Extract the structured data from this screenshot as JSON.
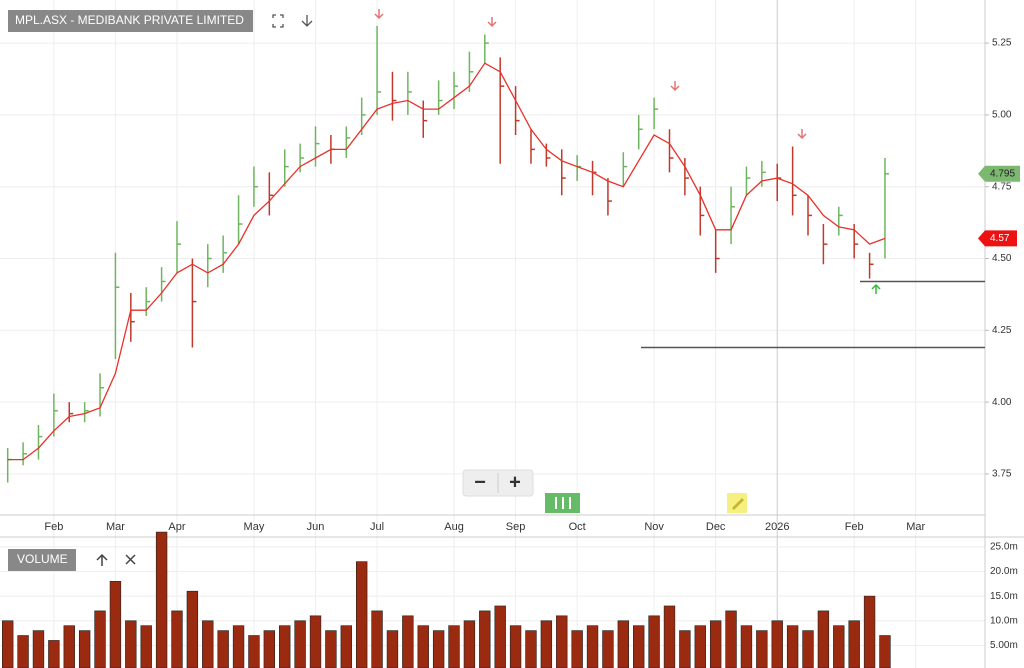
{
  "chart_data": {
    "type": "ohlc",
    "title": "MPL.ASX - MEDIBANK PRIVATE LIMITED",
    "categories": [
      null,
      null,
      null,
      "Feb",
      null,
      null,
      null,
      "Mar",
      null,
      null,
      null,
      "Apr",
      null,
      null,
      null,
      null,
      "May",
      null,
      null,
      null,
      "Jun",
      null,
      null,
      null,
      "Jul",
      null,
      null,
      null,
      null,
      "Aug",
      null,
      null,
      null,
      "Sep",
      null,
      null,
      null,
      "Oct",
      null,
      null,
      null,
      null,
      "Nov",
      null,
      null,
      null,
      "Dec",
      null,
      null,
      null,
      "2026",
      null,
      null,
      null,
      null,
      "Feb",
      null,
      null,
      null,
      "Mar",
      null,
      null,
      null,
      null
    ],
    "high": [
      3.84,
      3.86,
      3.92,
      4.03,
      4.0,
      4.0,
      4.1,
      4.52,
      4.38,
      4.4,
      4.47,
      4.63,
      4.5,
      4.55,
      4.58,
      4.72,
      4.82,
      4.8,
      4.88,
      4.9,
      4.96,
      4.93,
      4.96,
      5.06,
      5.31,
      5.15,
      5.15,
      5.05,
      5.12,
      5.15,
      5.22,
      5.28,
      5.2,
      5.1,
      4.95,
      4.9,
      4.88,
      4.86,
      4.84,
      4.78,
      4.87,
      5.0,
      5.06,
      4.95,
      4.85,
      4.75,
      4.6,
      4.75,
      4.82,
      4.84,
      4.83,
      4.89,
      4.72,
      4.62,
      4.68,
      4.62,
      4.52,
      4.85,
      null,
      null,
      null,
      null,
      null,
      null
    ],
    "low": [
      3.72,
      3.78,
      3.8,
      3.88,
      3.93,
      3.93,
      3.95,
      4.15,
      4.21,
      4.3,
      4.35,
      4.45,
      4.19,
      4.4,
      4.45,
      4.55,
      4.68,
      4.65,
      4.75,
      4.8,
      4.82,
      4.83,
      4.85,
      4.93,
      5.0,
      4.98,
      5.0,
      4.92,
      5.0,
      5.02,
      5.08,
      5.18,
      4.83,
      4.93,
      4.83,
      4.82,
      4.72,
      4.77,
      4.72,
      4.65,
      4.75,
      4.88,
      4.95,
      4.8,
      4.72,
      4.58,
      4.45,
      4.55,
      4.72,
      4.75,
      4.7,
      4.65,
      4.58,
      4.48,
      4.58,
      4.5,
      4.43,
      4.5,
      null,
      null,
      null,
      null,
      null,
      null
    ],
    "close": [
      3.8,
      3.82,
      3.88,
      3.97,
      3.96,
      3.97,
      4.05,
      4.4,
      4.28,
      4.35,
      4.42,
      4.55,
      4.35,
      4.5,
      4.52,
      4.62,
      4.75,
      4.72,
      4.82,
      4.85,
      4.9,
      4.88,
      4.92,
      5.0,
      5.08,
      5.05,
      5.08,
      4.98,
      5.05,
      5.1,
      5.15,
      5.25,
      5.1,
      4.98,
      4.88,
      4.85,
      4.78,
      4.82,
      4.8,
      4.7,
      4.82,
      4.95,
      5.02,
      4.85,
      4.78,
      4.65,
      4.5,
      4.68,
      4.78,
      4.8,
      4.78,
      4.72,
      4.65,
      4.55,
      4.65,
      4.55,
      4.48,
      4.795,
      null,
      null,
      null,
      null,
      null,
      null
    ],
    "ma_values": [
      3.8,
      3.8,
      3.84,
      3.9,
      3.95,
      3.96,
      3.98,
      4.1,
      4.32,
      4.32,
      4.38,
      4.45,
      4.48,
      4.45,
      4.48,
      4.55,
      4.65,
      4.7,
      4.76,
      4.82,
      4.85,
      4.88,
      4.88,
      4.95,
      5.02,
      5.04,
      5.05,
      5.02,
      5.02,
      5.06,
      5.1,
      5.18,
      5.15,
      5.05,
      4.95,
      4.88,
      4.84,
      4.82,
      4.8,
      4.77,
      4.75,
      4.84,
      4.93,
      4.9,
      4.82,
      4.72,
      4.6,
      4.6,
      4.72,
      4.77,
      4.78,
      4.76,
      4.72,
      4.65,
      4.61,
      4.6,
      4.55,
      4.57,
      null,
      null,
      null,
      null,
      null,
      null
    ],
    "up_color": "#6fb55f",
    "down_color": "#c0392b",
    "ma_color": "#e8312a",
    "ylim": [
      3.6,
      5.4
    ],
    "yticks": [
      3.75,
      {
        "value": 4.0,
        "label": "4.00"
      },
      4.25,
      {
        "value": 4.5,
        "label": "4.50"
      },
      4.75,
      {
        "value": 5.0,
        "label": "5.00"
      },
      5.25
    ],
    "last_close": 4.795,
    "last_close_color": "#7cb870",
    "ma_last": 4.57,
    "ma_last_color": "#ee1111",
    "levels": [
      4.42,
      4.19
    ],
    "grid": true,
    "zoom_out": "−",
    "zoom_in": "+",
    "volume": {
      "title": "VOLUME",
      "values": [
        10,
        7,
        8,
        6,
        9,
        8,
        12,
        18,
        10,
        9,
        28,
        12,
        16,
        10,
        8,
        9,
        7,
        8,
        9,
        10,
        11,
        8,
        9,
        22,
        12,
        8,
        11,
        9,
        8,
        9,
        10,
        12,
        13,
        9,
        8,
        10,
        11,
        8,
        9,
        8,
        10,
        9,
        11,
        13,
        8,
        9,
        10,
        12,
        9,
        8,
        10,
        9,
        8,
        12,
        9,
        10,
        15,
        7,
        null,
        null,
        null,
        null,
        null,
        null
      ],
      "color": "#9a2a10",
      "ylim": [
        0,
        27
      ],
      "yticks": [
        {
          "value": 5,
          "label": "5.00m"
        },
        {
          "value": 10,
          "label": "10.0m"
        },
        {
          "value": 15,
          "label": "15.0m"
        },
        {
          "value": 20,
          "label": "20.0m"
        },
        {
          "value": 25,
          "label": "25.0m"
        }
      ]
    }
  }
}
